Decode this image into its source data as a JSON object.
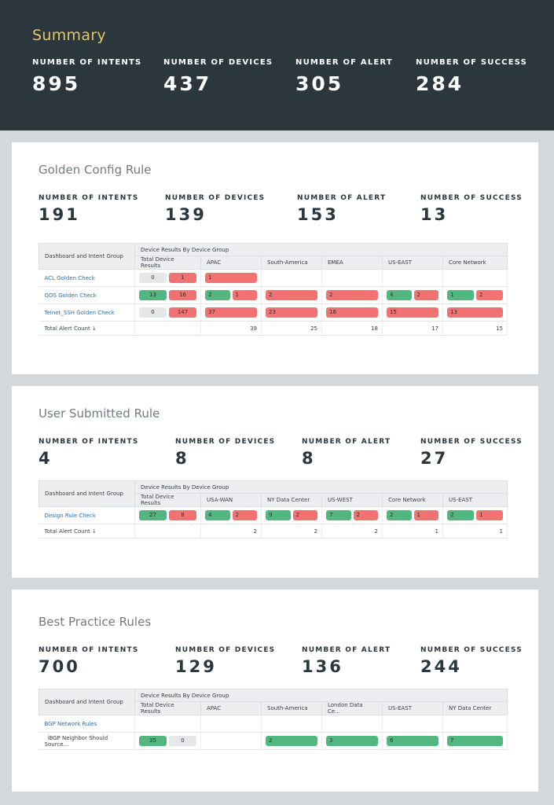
{
  "summary": {
    "title": "Summary",
    "stats": [
      {
        "label": "NUMBER OF INTENTS",
        "value": 895
      },
      {
        "label": "NUMBER OF DEVICES",
        "value": 437
      },
      {
        "label": "NUMBER OF ALERT",
        "value": 305
      },
      {
        "label": "NUMBER OF SUCCESS",
        "value": 284
      }
    ]
  },
  "sections": [
    {
      "title": "Golden Config Rule",
      "stats": [
        {
          "label": "NUMBER OF INTENTS",
          "value": 191
        },
        {
          "label": "NUMBER OF DEVICES",
          "value": 139
        },
        {
          "label": "NUMBER OF ALERT",
          "value": 153
        },
        {
          "label": "NUMBER OF SUCCESS",
          "value": 13
        }
      ],
      "table": {
        "group_header": "Dashboard and Intent Group",
        "results_header": "Device Results By Device Group",
        "columns": [
          "Total Device Results",
          "APAC",
          "South-America",
          "EMEA",
          "US-EAST",
          "Core Network"
        ],
        "rows": [
          {
            "name": "ACL Golden Check",
            "link": true,
            "cells": [
              [
                {
                  "value": 0,
                  "color": "#e6e7e8"
                },
                {
                  "value": 1,
                  "color": "#f07273"
                }
              ],
              [
                {
                  "value": 1,
                  "color": "#f07273"
                }
              ],
              [],
              [],
              [],
              []
            ]
          },
          {
            "name": "QOS Golden Check",
            "link": true,
            "cells": [
              [
                {
                  "value": 13,
                  "color": "#52b77f"
                },
                {
                  "value": 16,
                  "color": "#f07273"
                }
              ],
              [
                {
                  "value": 2,
                  "color": "#52b77f"
                },
                {
                  "value": 1,
                  "color": "#f07273"
                }
              ],
              [
                {
                  "value": 2,
                  "color": "#f07273"
                }
              ],
              [
                {
                  "value": 2,
                  "color": "#f07273"
                }
              ],
              [
                {
                  "value": 4,
                  "color": "#52b77f"
                },
                {
                  "value": 2,
                  "color": "#f07273"
                }
              ],
              [
                {
                  "value": 1,
                  "color": "#52b77f"
                },
                {
                  "value": 2,
                  "color": "#f07273"
                }
              ]
            ]
          },
          {
            "name": "Telnet_SSH Golden Check",
            "link": true,
            "cells": [
              [
                {
                  "value": 0,
                  "color": "#e6e7e8"
                },
                {
                  "value": 147,
                  "color": "#f07273"
                }
              ],
              [
                {
                  "value": 37,
                  "color": "#f07273"
                }
              ],
              [
                {
                  "value": 23,
                  "color": "#f07273"
                }
              ],
              [
                {
                  "value": 16,
                  "color": "#f07273"
                }
              ],
              [
                {
                  "value": 15,
                  "color": "#f07273"
                }
              ],
              [
                {
                  "value": 13,
                  "color": "#f07273"
                }
              ]
            ]
          }
        ],
        "total_label": "Total Alert Count ↓",
        "totals": [
          null,
          39,
          25,
          18,
          17,
          15
        ]
      }
    },
    {
      "title": "User Submitted Rule",
      "stats": [
        {
          "label": "NUMBER OF INTENTS",
          "value": 4
        },
        {
          "label": "NUMBER OF DEVICES",
          "value": 8
        },
        {
          "label": "NUMBER OF ALERT",
          "value": 8
        },
        {
          "label": "NUMBER OF SUCCESS",
          "value": 27
        }
      ],
      "table": {
        "group_header": "Dashboard and Intent Group",
        "results_header": "Device Results By Device Group",
        "columns": [
          "Total Device Results",
          "USA-WAN",
          "NY Data Center",
          "US-WEST",
          "Core Network",
          "US-EAST"
        ],
        "rows": [
          {
            "name": "Design Rule Check",
            "link": true,
            "cells": [
              [
                {
                  "value": 27,
                  "color": "#52b77f"
                },
                {
                  "value": 8,
                  "color": "#f07273"
                }
              ],
              [
                {
                  "value": 4,
                  "color": "#52b77f"
                },
                {
                  "value": 2,
                  "color": "#f07273"
                }
              ],
              [
                {
                  "value": 9,
                  "color": "#52b77f"
                },
                {
                  "value": 2,
                  "color": "#f07273"
                }
              ],
              [
                {
                  "value": 7,
                  "color": "#52b77f"
                },
                {
                  "value": 2,
                  "color": "#f07273"
                }
              ],
              [
                {
                  "value": 2,
                  "color": "#52b77f"
                },
                {
                  "value": 1,
                  "color": "#f07273"
                }
              ],
              [
                {
                  "value": 2,
                  "color": "#52b77f"
                },
                {
                  "value": 1,
                  "color": "#f07273"
                }
              ]
            ]
          }
        ],
        "total_label": "Total Alert Count ↓",
        "totals": [
          null,
          2,
          2,
          2,
          1,
          1
        ]
      }
    },
    {
      "title": "Best Practice Rules",
      "stats": [
        {
          "label": "NUMBER OF INTENTS",
          "value": 700
        },
        {
          "label": "NUMBER OF DEVICES",
          "value": 129
        },
        {
          "label": "NUMBER OF ALERT",
          "value": 136
        },
        {
          "label": "NUMBER OF SUCCESS",
          "value": 244
        }
      ],
      "table": {
        "group_header": "Dashboard and Intent Group",
        "results_header": "Device Results By Device Group",
        "columns": [
          "Total Device Results",
          "APAC",
          "South-America",
          "London Data Ce...",
          "US-EAST",
          "NY Data Center"
        ],
        "rows": [
          {
            "name": "BGP Network Rules",
            "link": true,
            "cells": [
              [],
              [],
              [],
              [],
              [],
              []
            ]
          },
          {
            "name": "iBGP Neighbor Should Source...",
            "link": false,
            "cells": [
              [
                {
                  "value": 35,
                  "color": "#52b77f"
                },
                {
                  "value": 0,
                  "color": "#e6e7e8"
                }
              ],
              [],
              [
                {
                  "value": 2,
                  "color": "#52b77f"
                }
              ],
              [
                {
                  "value": 3,
                  "color": "#52b77f"
                }
              ],
              [
                {
                  "value": 6,
                  "color": "#52b77f"
                }
              ],
              [
                {
                  "value": 7,
                  "color": "#52b77f"
                }
              ]
            ]
          }
        ]
      }
    }
  ]
}
